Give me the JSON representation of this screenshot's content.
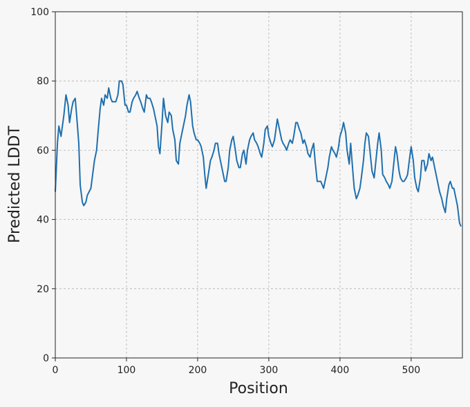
{
  "chart_data": {
    "type": "line",
    "xlabel": "Position",
    "ylabel": "Predicted LDDT",
    "xlim": [
      0,
      572
    ],
    "ylim": [
      0,
      100
    ],
    "xticks": [
      0,
      100,
      200,
      300,
      400,
      500
    ],
    "yticks": [
      0,
      20,
      40,
      60,
      80,
      100
    ],
    "grid": true,
    "series": [
      {
        "color": "#1f6fae",
        "x": [
          0,
          3,
          5,
          8,
          12,
          15,
          18,
          20,
          23,
          25,
          28,
          30,
          33,
          35,
          38,
          40,
          43,
          45,
          50,
          55,
          58,
          60,
          63,
          65,
          68,
          70,
          73,
          75,
          78,
          80,
          85,
          88,
          90,
          93,
          95,
          98,
          100,
          103,
          105,
          108,
          110,
          113,
          115,
          118,
          120,
          123,
          125,
          128,
          130,
          133,
          135,
          138,
          140,
          143,
          145,
          147,
          150,
          152,
          155,
          158,
          160,
          163,
          165,
          168,
          170,
          173,
          175,
          178,
          180,
          183,
          185,
          188,
          190,
          193,
          195,
          198,
          200,
          203,
          205,
          208,
          210,
          212,
          215,
          218,
          220,
          223,
          225,
          228,
          230,
          232,
          235,
          238,
          240,
          243,
          245,
          248,
          250,
          253,
          255,
          258,
          260,
          263,
          265,
          268,
          270,
          273,
          275,
          278,
          280,
          283,
          285,
          288,
          290,
          293,
          295,
          298,
          300,
          303,
          305,
          308,
          310,
          312,
          315,
          318,
          320,
          323,
          325,
          328,
          330,
          333,
          335,
          338,
          340,
          343,
          345,
          348,
          350,
          353,
          355,
          358,
          360,
          363,
          365,
          368,
          370,
          373,
          375,
          377,
          380,
          383,
          385,
          388,
          390,
          393,
          395,
          398,
          400,
          403,
          405,
          408,
          410,
          413,
          415,
          418,
          420,
          423,
          425,
          428,
          430,
          433,
          435,
          437,
          440,
          443,
          445,
          448,
          450,
          453,
          455,
          458,
          460,
          463,
          465,
          468,
          470,
          473,
          475,
          478,
          480,
          483,
          485,
          488,
          490,
          493,
          495,
          498,
          500,
          503,
          505,
          508,
          510,
          513,
          515,
          518,
          520,
          523,
          525,
          528,
          530,
          533,
          535,
          538,
          540,
          543,
          545,
          548,
          550,
          553,
          555,
          558,
          560,
          563,
          565,
          568,
          570
        ],
        "values": [
          48,
          62,
          67,
          64,
          70,
          76,
          73,
          68,
          72,
          74,
          75,
          70,
          62,
          50,
          45,
          44,
          45,
          47,
          49,
          57,
          60,
          65,
          72,
          75,
          73,
          76,
          75,
          78,
          75,
          74,
          74,
          76,
          80,
          80,
          79,
          73,
          73,
          71,
          71,
          74,
          75,
          76,
          77,
          75,
          74,
          72,
          71,
          76,
          75,
          75,
          74,
          72,
          70,
          67,
          61,
          59,
          68,
          75,
          70,
          68,
          71,
          70,
          66,
          63,
          57,
          56,
          62,
          65,
          67,
          70,
          73,
          76,
          74,
          67,
          65,
          63,
          63,
          62,
          61,
          58,
          53,
          49,
          53,
          57,
          58,
          60,
          62,
          62,
          59,
          57,
          54,
          51,
          51,
          55,
          60,
          63,
          64,
          60,
          57,
          55,
          55,
          59,
          60,
          56,
          60,
          63,
          64,
          65,
          63,
          62,
          61,
          59,
          58,
          62,
          66,
          67,
          64,
          62,
          61,
          63,
          66,
          69,
          66,
          63,
          62,
          61,
          60,
          62,
          63,
          62,
          64,
          68,
          68,
          66,
          65,
          62,
          63,
          61,
          59,
          58,
          60,
          62,
          57,
          51,
          51,
          51,
          50,
          49,
          52,
          55,
          58,
          61,
          60,
          59,
          58,
          61,
          64,
          66,
          68,
          65,
          60,
          56,
          62,
          54,
          49,
          46,
          47,
          49,
          52,
          57,
          62,
          65,
          64,
          58,
          54,
          52,
          56,
          62,
          65,
          60,
          53,
          52,
          51,
          50,
          49,
          51,
          55,
          61,
          59,
          54,
          52,
          51,
          51,
          52,
          53,
          58,
          61,
          57,
          52,
          49,
          48,
          52,
          57,
          57,
          54,
          56,
          59,
          57,
          58,
          55,
          53,
          50,
          48,
          46,
          44,
          42,
          46,
          50,
          51,
          49,
          49,
          46,
          44,
          39,
          38
        ]
      }
    ]
  }
}
